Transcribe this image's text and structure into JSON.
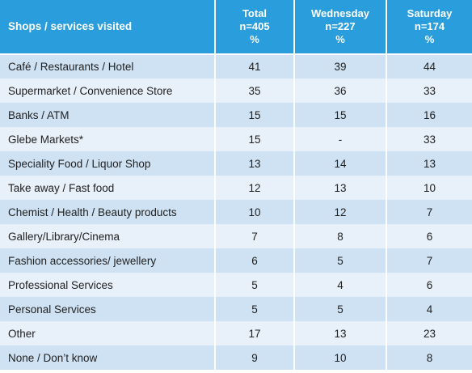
{
  "chart_data": {
    "type": "table",
    "columns": [
      {
        "label": "Shops / services visited",
        "lines": [
          "Shops / services visited"
        ]
      },
      {
        "label": "Total n=405 %",
        "lines": [
          "Total",
          "n=405",
          "%"
        ]
      },
      {
        "label": "Wednesday n=227 %",
        "lines": [
          "Wednesday",
          "n=227",
          "%"
        ]
      },
      {
        "label": "Saturday n=174 %",
        "lines": [
          "Saturday",
          "n=174",
          "%"
        ]
      }
    ],
    "rows": [
      {
        "label": "Café / Restaurants / Hotel",
        "values": [
          "41",
          "39",
          "44"
        ]
      },
      {
        "label": "Supermarket / Convenience Store",
        "values": [
          "35",
          "36",
          "33"
        ]
      },
      {
        "label": "Banks / ATM",
        "values": [
          "15",
          "15",
          "16"
        ]
      },
      {
        "label": "Glebe Markets*",
        "values": [
          "15",
          "-",
          "33"
        ]
      },
      {
        "label": "Speciality Food / Liquor Shop",
        "values": [
          "13",
          "14",
          "13"
        ]
      },
      {
        "label": "Take away / Fast food",
        "values": [
          "12",
          "13",
          "10"
        ]
      },
      {
        "label": "Chemist / Health / Beauty products",
        "values": [
          "10",
          "12",
          "7"
        ]
      },
      {
        "label": "Gallery/Library/Cinema",
        "values": [
          "7",
          "8",
          "6"
        ]
      },
      {
        "label": "Fashion accessories/ jewellery",
        "values": [
          "6",
          "5",
          "7"
        ]
      },
      {
        "label": "Professional Services",
        "values": [
          "5",
          "4",
          "6"
        ]
      },
      {
        "label": "Personal Services",
        "values": [
          "5",
          "5",
          "4"
        ]
      },
      {
        "label": "Other",
        "values": [
          "17",
          "13",
          "23"
        ]
      },
      {
        "label": "None / Don’t know",
        "values": [
          "9",
          "10",
          "8"
        ]
      }
    ]
  },
  "colors": {
    "header_bg": "#2a9ddd",
    "header_text": "#ffffff",
    "row_odd_bg": "#cfe2f3",
    "row_even_bg": "#e8f0f9",
    "body_text": "#1f1f1f"
  }
}
